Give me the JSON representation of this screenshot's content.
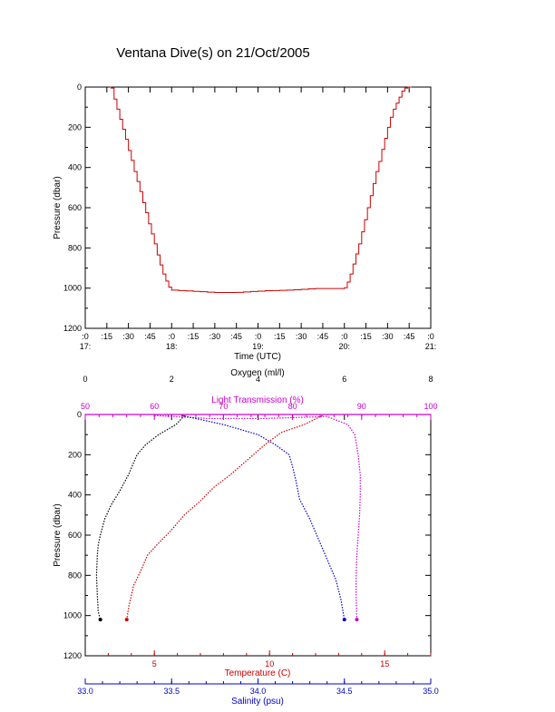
{
  "title": "Ventana Dive(s) on 21/Oct/2005",
  "colors": {
    "black": "#000000",
    "red": "#cc0000",
    "blue": "#0000cc",
    "magenta": "#cc00cc"
  },
  "chart_data": [
    {
      "type": "line",
      "xlabel": "Time (UTC)",
      "ylabel": "Pressure (dbar)",
      "xlim_minutes": [
        0,
        240
      ],
      "ylim": [
        1200,
        0
      ],
      "y_ticks": [
        "0",
        "200",
        "400",
        "600",
        "800",
        "1000",
        "1200"
      ],
      "x_ticks_top": [
        ":0",
        ":15",
        ":30",
        ":45",
        ":0",
        ":15",
        ":30",
        ":45",
        ":0",
        ":15",
        ":30",
        ":45",
        ":0",
        ":15",
        ":30",
        ":45",
        ":0"
      ],
      "x_hour_labels": [
        "17:",
        "18:",
        "19:",
        "20:",
        "21:"
      ],
      "series": [
        {
          "color": "#cc0000",
          "x": [
            17,
            18,
            20,
            22,
            24,
            26,
            28,
            30,
            32,
            34,
            36,
            38,
            40,
            42,
            44,
            46,
            48,
            50,
            52,
            54,
            56,
            58,
            60,
            65,
            70,
            75,
            80,
            85,
            90,
            95,
            100,
            105,
            110,
            115,
            120,
            125,
            130,
            135,
            140,
            145,
            150,
            155,
            160,
            180,
            182,
            184,
            186,
            188,
            190,
            192,
            194,
            196,
            198,
            200,
            202,
            204,
            206,
            208,
            210,
            212,
            214,
            216,
            218,
            220,
            222,
            224,
            226,
            227
          ],
          "y": [
            0,
            5,
            60,
            110,
            160,
            210,
            260,
            315,
            365,
            420,
            470,
            520,
            575,
            625,
            680,
            730,
            780,
            835,
            885,
            930,
            965,
            995,
            1010,
            1012,
            1014,
            1016,
            1018,
            1020,
            1022,
            1022,
            1022,
            1021,
            1019,
            1017,
            1015,
            1013,
            1012,
            1011,
            1010,
            1008,
            1006,
            1004,
            1002,
            998,
            970,
            930,
            880,
            830,
            780,
            720,
            660,
            600,
            540,
            480,
            420,
            370,
            310,
            255,
            200,
            150,
            110,
            80,
            50,
            20,
            5,
            0,
            0,
            0
          ]
        }
      ]
    },
    {
      "type": "line",
      "ylabel": "Pressure (dbar)",
      "ylim": [
        1200,
        0
      ],
      "y_ticks": [
        "0",
        "200",
        "400",
        "600",
        "800",
        "1000",
        "1200"
      ],
      "axes": {
        "oxygen": {
          "label": "Oxygen (ml/l)",
          "range": [
            0,
            8
          ],
          "ticks": [
            "0",
            "2",
            "4",
            "6",
            "8"
          ],
          "color": "#000000"
        },
        "transmission": {
          "label": "Light Transmission (%)",
          "range": [
            50,
            100
          ],
          "ticks": [
            "50",
            "60",
            "70",
            "80",
            "90",
            "100"
          ],
          "color": "#cc00cc"
        },
        "temperature": {
          "label": "Temperature (C)",
          "range": [
            2,
            17
          ],
          "ticks": [
            "5",
            "10",
            "15"
          ],
          "color": "#cc0000"
        },
        "salinity": {
          "label": "Salinity (psu)",
          "range": [
            33.0,
            35.0
          ],
          "ticks": [
            "33.0",
            "33.5",
            "34.0",
            "34.5",
            "35.0"
          ],
          "color": "#0000cc"
        }
      },
      "series": [
        {
          "axis": "oxygen",
          "color": "#000000",
          "x": [
            2.3,
            2.1,
            1.7,
            1.4,
            1.2,
            1.0,
            0.8,
            0.6,
            0.45,
            0.35,
            0.3,
            0.28,
            0.26,
            0.28,
            0.3,
            0.35
          ],
          "y": [
            5,
            50,
            100,
            150,
            200,
            300,
            380,
            450,
            520,
            600,
            650,
            700,
            800,
            900,
            980,
            1020
          ]
        },
        {
          "axis": "transmission",
          "color": "#cc00cc",
          "x": [
            60,
            68,
            76,
            85,
            88,
            89,
            89.5,
            89.8,
            89.8,
            89.7,
            89.5,
            89.3,
            89.2,
            89.2,
            89.3
          ],
          "y": [
            5,
            20,
            20,
            10,
            50,
            100,
            200,
            300,
            400,
            500,
            600,
            700,
            800,
            900,
            1020
          ]
        },
        {
          "axis": "temperature",
          "color": "#cc0000",
          "x": [
            12.3,
            11.5,
            10.5,
            9.8,
            9.0,
            8.3,
            7.6,
            7.0,
            6.3,
            5.7,
            5.1,
            4.7,
            4.4,
            4.1,
            3.9,
            3.8
          ],
          "y": [
            5,
            50,
            90,
            150,
            230,
            300,
            360,
            430,
            500,
            580,
            650,
            700,
            780,
            850,
            950,
            1020
          ]
        },
        {
          "axis": "salinity",
          "color": "#0000cc",
          "x": [
            33.56,
            33.8,
            34.0,
            34.1,
            34.18,
            34.2,
            34.22,
            34.24,
            34.3,
            34.35,
            34.4,
            34.45,
            34.48,
            34.5
          ],
          "y": [
            5,
            50,
            100,
            150,
            200,
            260,
            330,
            420,
            520,
            620,
            720,
            820,
            920,
            1020
          ]
        }
      ]
    }
  ]
}
